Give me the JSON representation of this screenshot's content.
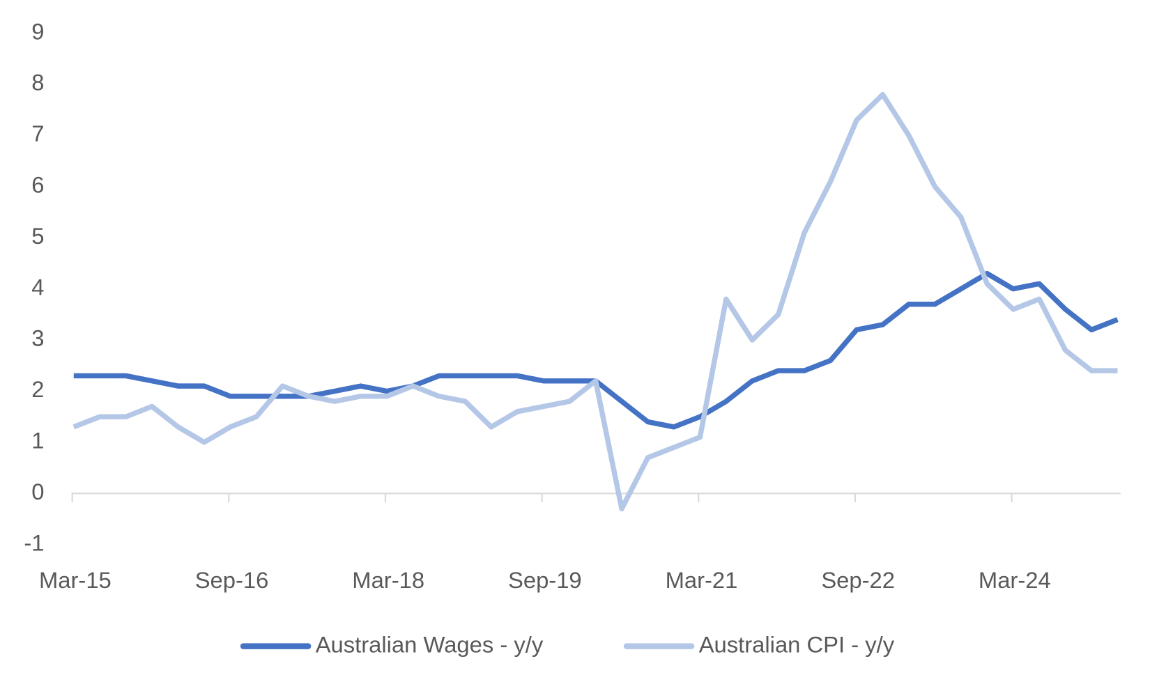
{
  "chart_data": {
    "type": "line",
    "categories": [
      "Mar-15",
      null,
      null,
      null,
      null,
      null,
      "Sep-16",
      null,
      null,
      null,
      null,
      null,
      "Mar-18",
      null,
      null,
      null,
      null,
      null,
      "Sep-19",
      null,
      null,
      null,
      null,
      null,
      "Mar-21",
      null,
      null,
      null,
      null,
      null,
      "Sep-22",
      null,
      null,
      null,
      null,
      null,
      "Mar-24",
      null,
      null,
      null,
      null
    ],
    "series": [
      {
        "name": "Australian Wages - y/y",
        "color": "#4472c4",
        "values": [
          2.3,
          2.3,
          2.3,
          2.2,
          2.1,
          2.1,
          1.9,
          1.9,
          1.9,
          1.9,
          2.0,
          2.1,
          2.0,
          2.1,
          2.3,
          2.3,
          2.3,
          2.3,
          2.2,
          2.2,
          2.2,
          1.8,
          1.4,
          1.3,
          1.5,
          1.8,
          2.2,
          2.4,
          2.4,
          2.6,
          3.2,
          3.3,
          3.7,
          3.7,
          4.0,
          4.3,
          4.0,
          4.1,
          3.6,
          3.2,
          3.4
        ]
      },
      {
        "name": "Australian CPI - y/y",
        "color": "#b4c7e7",
        "values": [
          1.3,
          1.5,
          1.5,
          1.7,
          1.3,
          1.0,
          1.3,
          1.5,
          2.1,
          1.9,
          1.8,
          1.9,
          1.9,
          2.1,
          1.9,
          1.8,
          1.3,
          1.6,
          1.7,
          1.8,
          2.2,
          -0.3,
          0.7,
          0.9,
          1.1,
          3.8,
          3.0,
          3.5,
          5.1,
          6.1,
          7.3,
          7.8,
          7.0,
          6.0,
          5.4,
          4.1,
          3.6,
          3.8,
          2.8,
          2.4,
          2.4
        ]
      }
    ],
    "ylim": [
      -1,
      9
    ],
    "yticks": [
      -1,
      0,
      1,
      2,
      3,
      4,
      5,
      6,
      7,
      8,
      9
    ],
    "grid": false,
    "legend": "bottom"
  }
}
